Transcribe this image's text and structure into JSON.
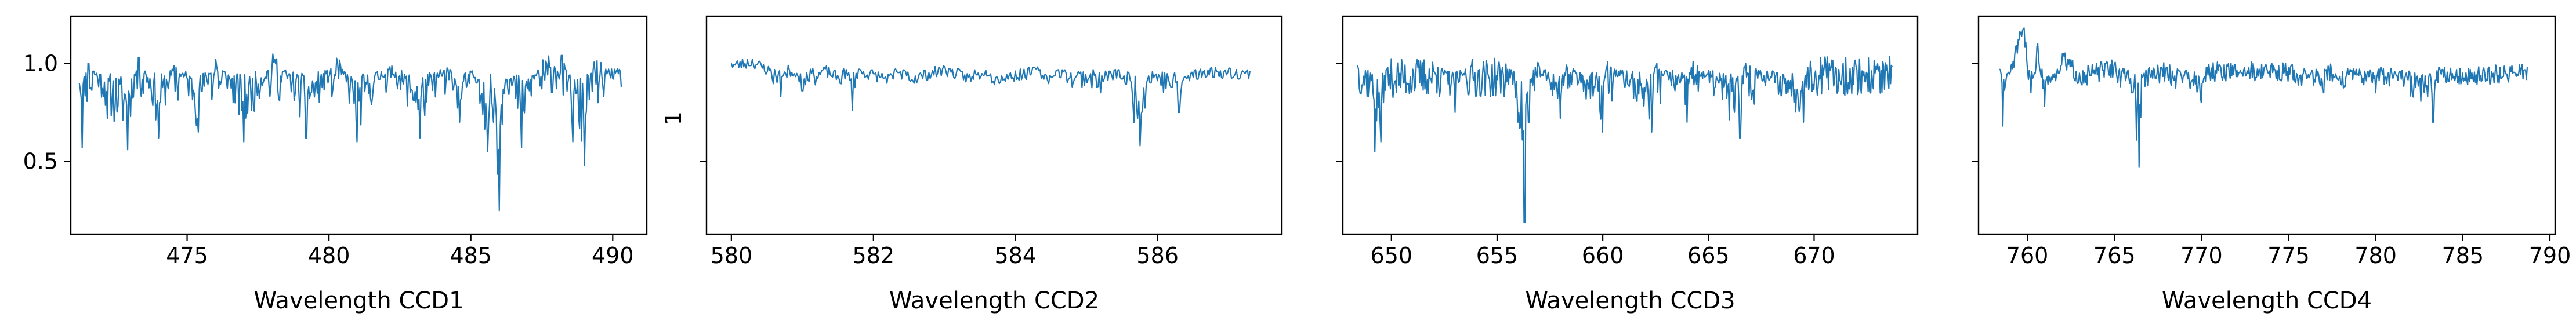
{
  "figure": {
    "line_color": "#1f77b4",
    "axis_color": "#000000",
    "background": "#ffffff"
  },
  "chart_data": [
    {
      "type": "line",
      "xlabel": "Wavelength CCD1",
      "ylabel": "",
      "xlim": [
        470.9,
        491.2
      ],
      "ylim": [
        0.13,
        1.24
      ],
      "xticks": [
        475,
        480,
        485,
        490
      ],
      "xtick_labels": [
        "475",
        "480",
        "485",
        "490"
      ],
      "yticks": [
        0.5,
        1.0
      ],
      "ytick_labels": [
        "0.5",
        "1.0"
      ],
      "grid": false,
      "series": [
        {
          "color": "#1f77b4",
          "x_range": [
            471.2,
            490.3
          ],
          "anchors": [
            [
              471.2,
              0.9
            ],
            [
              471.3,
              0.57
            ],
            [
              471.5,
              1.0
            ],
            [
              472.2,
              0.72
            ],
            [
              472.9,
              0.56
            ],
            [
              473.3,
              1.03
            ],
            [
              474.0,
              0.62
            ],
            [
              474.6,
              0.98
            ],
            [
              475.4,
              0.65
            ],
            [
              476.0,
              1.02
            ],
            [
              477.0,
              0.6
            ],
            [
              478.1,
              1.02
            ],
            [
              479.2,
              0.62
            ],
            [
              480.3,
              1.0
            ],
            [
              481.0,
              0.6
            ],
            [
              482.1,
              0.97
            ],
            [
              483.2,
              0.62
            ],
            [
              484.2,
              0.97
            ],
            [
              484.6,
              0.7
            ],
            [
              485.2,
              0.9
            ],
            [
              485.6,
              0.55
            ],
            [
              485.8,
              0.7
            ],
            [
              486.0,
              0.25
            ],
            [
              486.2,
              0.9
            ],
            [
              486.8,
              0.57
            ],
            [
              487.4,
              0.95
            ],
            [
              488.2,
              1.04
            ],
            [
              488.6,
              0.6
            ],
            [
              489.0,
              0.48
            ],
            [
              489.3,
              0.97
            ],
            [
              490.3,
              0.88
            ]
          ],
          "noise": 0.22,
          "baseline": 0.98,
          "points": 560,
          "seed": 11
        }
      ]
    },
    {
      "type": "line",
      "xlabel": "Wavelength CCD2",
      "ylabel": "1",
      "xlim": [
        579.65,
        587.75
      ],
      "ylim": [
        0.13,
        1.24
      ],
      "xticks": [
        580,
        582,
        584,
        586
      ],
      "xtick_labels": [
        "580",
        "582",
        "584",
        "586"
      ],
      "yticks": [
        0.5
      ],
      "ytick_labels": [
        ""
      ],
      "grid": false,
      "series": [
        {
          "color": "#1f77b4",
          "x_range": [
            580.0,
            587.3
          ],
          "anchors": [
            [
              580.0,
              1.0
            ],
            [
              580.3,
              1.02
            ],
            [
              580.55,
              0.97
            ],
            [
              580.7,
              0.83
            ],
            [
              580.8,
              0.99
            ],
            [
              581.0,
              0.86
            ],
            [
              581.3,
              0.98
            ],
            [
              581.6,
              0.92
            ],
            [
              581.7,
              0.76
            ],
            [
              581.8,
              0.97
            ],
            [
              582.4,
              0.92
            ],
            [
              583.0,
              0.98
            ],
            [
              583.5,
              0.92
            ],
            [
              584.3,
              0.97
            ],
            [
              584.8,
              0.88
            ],
            [
              585.2,
              0.85
            ],
            [
              585.5,
              0.92
            ],
            [
              585.75,
              0.58
            ],
            [
              585.9,
              0.9
            ],
            [
              586.3,
              0.75
            ],
            [
              586.6,
              0.97
            ],
            [
              587.3,
              0.96
            ]
          ],
          "noise": 0.06,
          "baseline": 0.98,
          "points": 420,
          "seed": 23
        }
      ]
    },
    {
      "type": "line",
      "xlabel": "Wavelength CCD3",
      "ylabel": "",
      "xlim": [
        647.7,
        674.9
      ],
      "ylim": [
        0.13,
        1.24
      ],
      "xticks": [
        650,
        655,
        660,
        665,
        670
      ],
      "xtick_labels": [
        "650",
        "655",
        "660",
        "665",
        "670"
      ],
      "yticks": [
        0.5,
        1.0
      ],
      "ytick_labels": [
        "",
        ""
      ],
      "grid": false,
      "series": [
        {
          "color": "#1f77b4",
          "x_range": [
            648.4,
            673.7
          ],
          "anchors": [
            [
              648.4,
              0.99
            ],
            [
              649.0,
              0.95
            ],
            [
              649.2,
              0.55
            ],
            [
              649.5,
              0.6
            ],
            [
              649.8,
              0.97
            ],
            [
              651.0,
              0.97
            ],
            [
              652.2,
              0.98
            ],
            [
              653.0,
              0.75
            ],
            [
              653.5,
              0.97
            ],
            [
              655.5,
              0.97
            ],
            [
              656.0,
              0.7
            ],
            [
              656.3,
              0.19
            ],
            [
              656.5,
              0.7
            ],
            [
              656.8,
              0.98
            ],
            [
              658.0,
              0.72
            ],
            [
              658.3,
              0.98
            ],
            [
              660.0,
              0.65
            ],
            [
              660.2,
              0.98
            ],
            [
              662.3,
              0.65
            ],
            [
              662.5,
              0.98
            ],
            [
              664.0,
              0.7
            ],
            [
              664.2,
              0.98
            ],
            [
              666.5,
              0.62
            ],
            [
              666.7,
              0.98
            ],
            [
              669.5,
              0.7
            ],
            [
              669.7,
              0.98
            ],
            [
              671.0,
              0.98
            ],
            [
              673.7,
              0.98
            ]
          ],
          "noise": 0.2,
          "baseline": 0.98,
          "points": 620,
          "seed": 37
        }
      ]
    },
    {
      "type": "line",
      "xlabel": "Wavelength CCD4",
      "ylabel": "",
      "xlim": [
        757.2,
        790.3
      ],
      "ylim": [
        0.13,
        1.24
      ],
      "xticks": [
        760,
        765,
        770,
        775,
        780,
        785,
        790
      ],
      "xtick_labels": [
        "760",
        "765",
        "770",
        "775",
        "780",
        "785",
        "790"
      ],
      "yticks": [
        0.5,
        1.0
      ],
      "ytick_labels": [
        "",
        ""
      ],
      "grid": false,
      "series": [
        {
          "color": "#1f77b4",
          "x_range": [
            758.4,
            788.7
          ],
          "anchors": [
            [
              758.4,
              0.97
            ],
            [
              758.6,
              0.68
            ],
            [
              758.9,
              0.95
            ],
            [
              759.5,
              1.12
            ],
            [
              759.8,
              1.18
            ],
            [
              760.2,
              0.85
            ],
            [
              760.6,
              1.1
            ],
            [
              761.0,
              0.78
            ],
            [
              762.0,
              1.05
            ],
            [
              763.0,
              0.95
            ],
            [
              765.0,
              1.0
            ],
            [
              766.0,
              0.85
            ],
            [
              766.4,
              0.47
            ],
            [
              766.7,
              0.95
            ],
            [
              768.0,
              0.98
            ],
            [
              770.0,
              0.8
            ],
            [
              770.3,
              0.98
            ],
            [
              775.0,
              0.98
            ],
            [
              777.0,
              0.85
            ],
            [
              777.3,
              0.98
            ],
            [
              780.0,
              0.85
            ],
            [
              780.3,
              0.98
            ],
            [
              783.3,
              0.7
            ],
            [
              783.6,
              0.98
            ],
            [
              785.0,
              0.95
            ],
            [
              788.7,
              0.98
            ]
          ],
          "noise": 0.1,
          "baseline": 0.98,
          "points": 620,
          "seed": 51
        }
      ]
    }
  ]
}
